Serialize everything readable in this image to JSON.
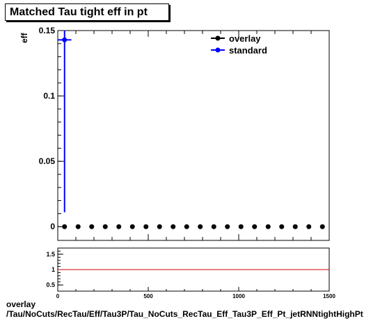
{
  "title": "Matched Tau tight eff in pt",
  "footer": {
    "line1": "overlay",
    "line2": "/Tau/NoCuts/RecTau/Eff/Tau3P/Tau_NoCuts_RecTau_Eff_Tau3P_Eff_Pt_jetRNNtightHighPt"
  },
  "chart_data": [
    {
      "type": "scatter",
      "ylabel": "eff",
      "xlim": [
        0,
        1500
      ],
      "ylim": [
        -0.0105,
        0.15
      ],
      "y_ticks": [
        {
          "value": 0,
          "label": "0"
        },
        {
          "value": 0.05,
          "label": "0.05"
        },
        {
          "value": 0.1,
          "label": "0.1"
        },
        {
          "value": 0.15,
          "label": "0.15"
        }
      ],
      "legend": {
        "placement": "top-right",
        "entries": [
          {
            "name": "overlay",
            "color": "#000000"
          },
          {
            "name": "standard",
            "color": "#0000ff"
          }
        ]
      },
      "series": [
        {
          "name": "overlay",
          "color": "#000000",
          "x": [
            37.5,
            112.5,
            187.5,
            262.5,
            337.5,
            412.5,
            487.5,
            562.5,
            637.5,
            712.5,
            787.5,
            862.5,
            937.5,
            1012.5,
            1087.5,
            1162.5,
            1237.5,
            1312.5,
            1387.5,
            1462.5
          ],
          "y": [
            0,
            0,
            0,
            0,
            0,
            0,
            0,
            0,
            0,
            0,
            0,
            0,
            0,
            0,
            0,
            0,
            0,
            0,
            0,
            0
          ]
        },
        {
          "name": "standard",
          "color": "#0000ff",
          "x": [
            37.5
          ],
          "y": [
            0.1429
          ],
          "y_err_low": [
            0.1319
          ],
          "y_err_high": [
            0.0071
          ],
          "x_err": [
            37.5
          ]
        }
      ]
    },
    {
      "type": "line",
      "xlim": [
        0,
        1500
      ],
      "ylim": [
        0.3,
        1.7
      ],
      "x_ticks": [
        {
          "value": 0,
          "label": "0"
        },
        {
          "value": 500,
          "label": "500"
        },
        {
          "value": 1000,
          "label": "1000"
        },
        {
          "value": 1500,
          "label": "1500"
        }
      ],
      "y_ticks": [
        {
          "value": 0.5,
          "label": "0.5"
        },
        {
          "value": 1,
          "label": "1"
        },
        {
          "value": 1.5,
          "label": "1.5"
        }
      ],
      "reference_line": {
        "y": 1,
        "color": "#cc0000"
      }
    }
  ]
}
